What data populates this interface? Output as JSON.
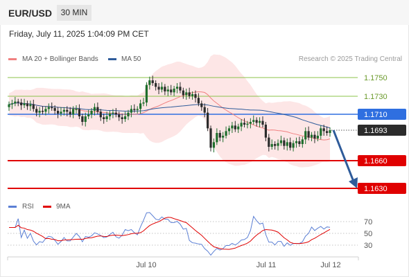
{
  "header": {
    "symbol": "EUR/USD",
    "interval": "30 MIN"
  },
  "datetime": "Friday, July 11, 2025 1:04:09 PM CET",
  "legend": {
    "ma20": {
      "label": "MA 20 + Bollinger Bands",
      "color": "#f08080"
    },
    "ma50": {
      "label": "MA 50",
      "color": "#2e5b9a"
    },
    "copyright": "Research © 2025 Trading Central"
  },
  "levels": [
    {
      "label": "1.1750",
      "kind": "target",
      "color": "#8bc34a"
    },
    {
      "label": "1.1730",
      "kind": "target",
      "color": "#8bc34a"
    },
    {
      "label": "1.1710",
      "kind": "pivot",
      "color": "#2f6fe0"
    },
    {
      "label": "1.1693",
      "kind": "last",
      "color": "#2b2b2b"
    },
    {
      "label": "1.1660",
      "kind": "support",
      "color": "#e00000"
    },
    {
      "label": "1.1630",
      "kind": "support",
      "color": "#e00000"
    }
  ],
  "rsi_legend": {
    "rsi": {
      "label": "RSI",
      "color": "#5b7fd4"
    },
    "ma9": {
      "label": "9MA",
      "color": "#e00000"
    }
  },
  "rsi_scale": [
    "70",
    "50",
    "30"
  ],
  "x_labels": [
    "Jul 10",
    "Jul 11",
    "Jul 12"
  ]
}
